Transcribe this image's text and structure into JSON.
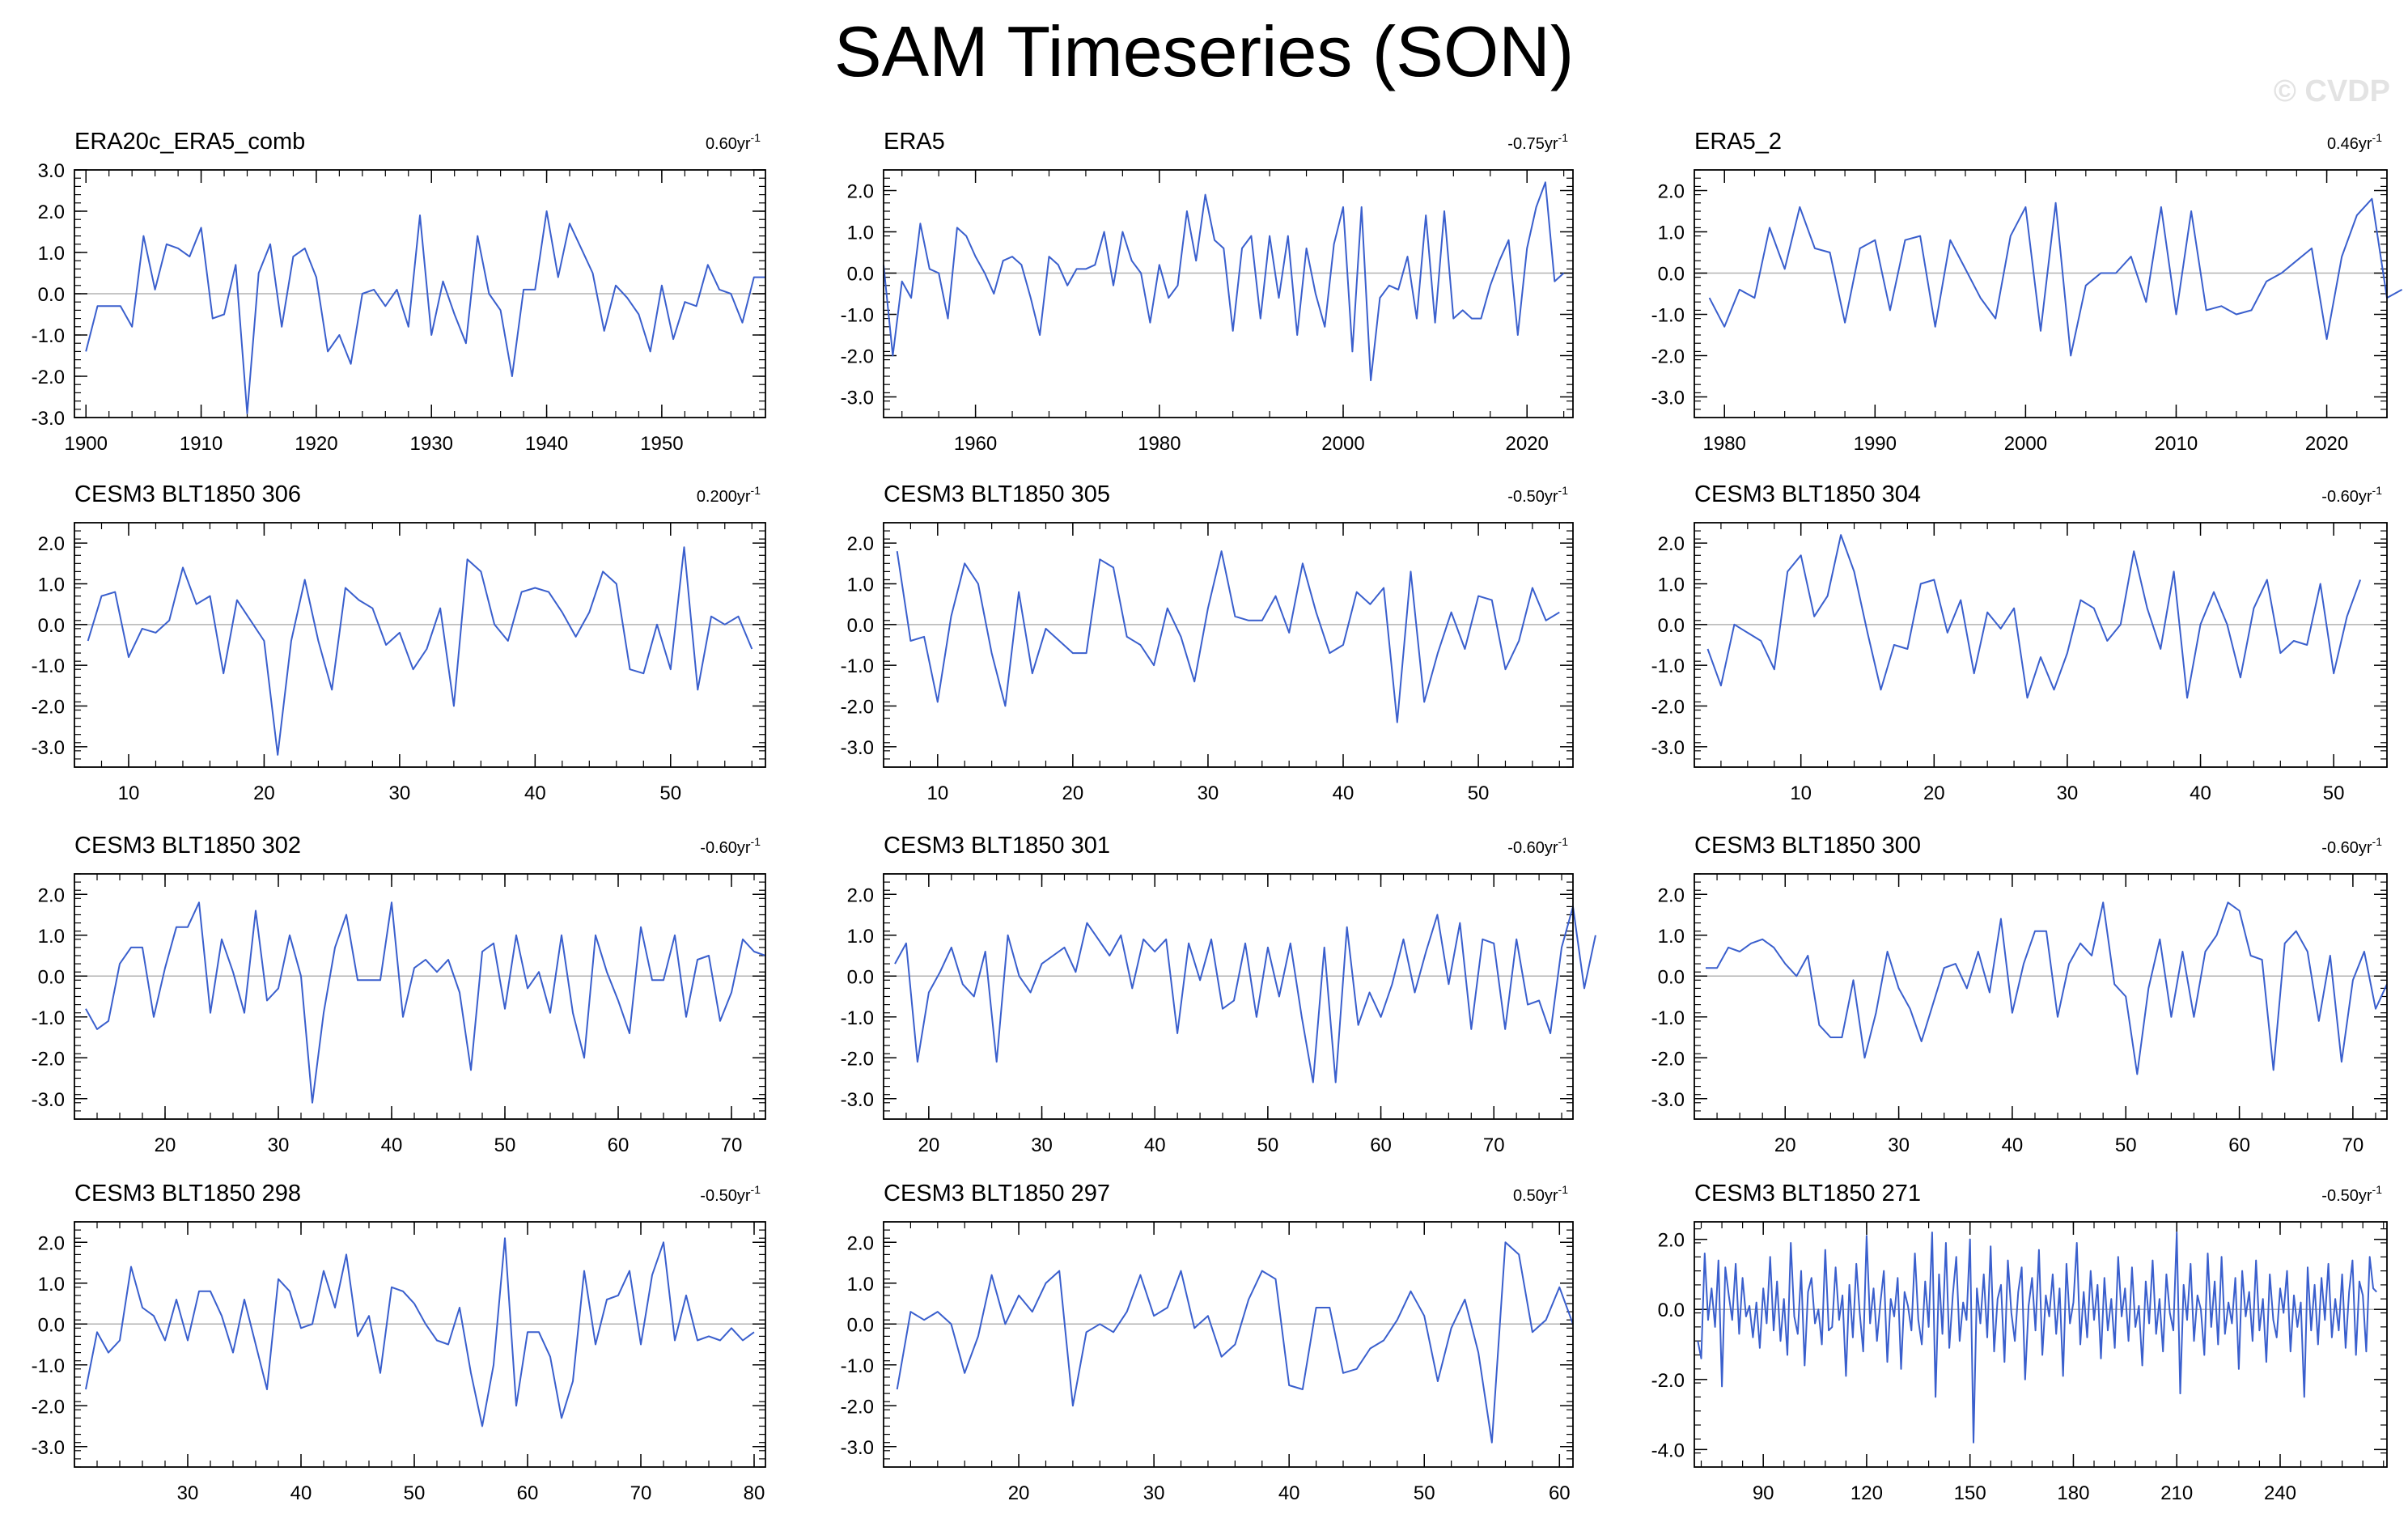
{
  "page": {
    "title": "SAM Timeseries (SON)",
    "watermark": "© CVDP",
    "colors": {
      "series": "#3a5fcd",
      "zero_line": "#b3b3b3",
      "axis": "#000000"
    }
  },
  "chart_data": [
    {
      "type": "line",
      "title": "ERA20c_ERA5_comb",
      "trend": {
        "value": "0.60",
        "unit": "yr",
        "exponent": "-1"
      },
      "xlim": [
        1899,
        1959
      ],
      "ylim": [
        -3,
        3
      ],
      "xticks": [
        1900,
        1910,
        1920,
        1930,
        1940,
        1950
      ],
      "yticks": [
        -3,
        -2,
        -1,
        0,
        1,
        2,
        3
      ],
      "ytick_labels": [
        "-3.0",
        "-2.0",
        "-1.0",
        "0.0",
        "1.0",
        "2.0",
        "3.0"
      ],
      "x_start": 1900,
      "x_step": 1,
      "values": [
        -1.4,
        -0.3,
        -0.3,
        -0.3,
        -0.8,
        1.4,
        0.1,
        1.2,
        1.1,
        0.9,
        1.6,
        -0.6,
        -0.5,
        0.7,
        -2.9,
        0.5,
        1.2,
        -0.8,
        0.9,
        1.1,
        0.4,
        -1.4,
        -1.0,
        -1.7,
        0.0,
        0.1,
        -0.3,
        0.1,
        -0.8,
        1.9,
        -1.0,
        0.3,
        -0.5,
        -1.2,
        1.4,
        0.0,
        -0.4,
        -2.0,
        0.1,
        0.1,
        2.0,
        0.4,
        1.7,
        1.1,
        0.5,
        -0.9,
        0.2,
        -0.1,
        -0.5,
        -1.4,
        0.2,
        -1.1,
        -0.2,
        -0.3,
        0.7,
        0.1,
        0.0,
        -0.7,
        0.4,
        0.4
      ]
    },
    {
      "type": "line",
      "title": "ERA5",
      "trend": {
        "value": "-0.75",
        "unit": "yr",
        "exponent": "-1"
      },
      "xlim": [
        1950,
        2025
      ],
      "ylim": [
        -3.5,
        2.5
      ],
      "xticks": [
        1960,
        1980,
        2000,
        2020
      ],
      "yticks": [
        -3,
        -2,
        -1,
        0,
        1,
        2
      ],
      "ytick_labels": [
        "-3.0",
        "-2.0",
        "-1.0",
        "0.0",
        "1.0",
        "2.0"
      ],
      "x_start": 1950,
      "x_step": 1,
      "values": [
        0.2,
        -2.0,
        -0.2,
        -0.6,
        1.2,
        0.1,
        0.0,
        -1.1,
        1.1,
        0.9,
        0.4,
        0.0,
        -0.5,
        0.3,
        0.4,
        0.2,
        -0.6,
        -1.5,
        0.4,
        0.2,
        -0.3,
        0.1,
        0.1,
        0.2,
        1.0,
        -0.3,
        1.0,
        0.3,
        0.0,
        -1.2,
        0.2,
        -0.6,
        -0.3,
        1.5,
        0.3,
        1.9,
        0.8,
        0.6,
        -1.4,
        0.6,
        0.9,
        -1.1,
        0.9,
        -0.6,
        0.9,
        -1.5,
        0.6,
        -0.5,
        -1.3,
        0.7,
        1.6,
        -1.9,
        1.6,
        -2.6,
        -0.6,
        -0.3,
        -0.4,
        0.4,
        -1.1,
        1.4,
        -1.2,
        1.5,
        -1.1,
        -0.9,
        -1.1,
        -1.1,
        -0.3,
        0.3,
        0.8,
        -1.5,
        0.6,
        1.6,
        2.2,
        -0.2,
        0.0
      ]
    },
    {
      "type": "line",
      "title": "ERA5_2",
      "trend": {
        "value": "0.46",
        "unit": "yr",
        "exponent": "-1"
      },
      "xlim": [
        1978,
        2024
      ],
      "ylim": [
        -3.5,
        2.5
      ],
      "xticks": [
        1980,
        1990,
        2000,
        2010,
        2020
      ],
      "yticks": [
        -3,
        -2,
        -1,
        0,
        1,
        2
      ],
      "ytick_labels": [
        "-3.0",
        "-2.0",
        "-1.0",
        "0.0",
        "1.0",
        "2.0"
      ],
      "x_start": 1979,
      "x_step": 1,
      "values": [
        -0.6,
        -1.3,
        -0.4,
        -0.6,
        1.1,
        0.1,
        1.6,
        0.6,
        0.5,
        -1.2,
        0.6,
        0.8,
        -0.9,
        0.8,
        0.9,
        -1.3,
        0.8,
        0.1,
        -0.6,
        -1.1,
        0.9,
        1.6,
        -1.4,
        1.7,
        -2.0,
        -0.3,
        0.0,
        0.0,
        0.4,
        -0.7,
        1.6,
        -1.0,
        1.5,
        -0.9,
        -0.8,
        -1.0,
        -0.9,
        -0.2,
        0.0,
        0.3,
        0.6,
        -1.6,
        0.4,
        1.4,
        1.8,
        -0.6,
        -0.4
      ]
    },
    {
      "type": "line",
      "title": "CESM3 BLT1850 306",
      "trend": {
        "value": "0.200",
        "unit": "yr",
        "exponent": "-1"
      },
      "xlim": [
        6,
        57
      ],
      "ylim": [
        -3.5,
        2.5
      ],
      "xticks": [
        10,
        20,
        30,
        40,
        50
      ],
      "yticks": [
        -3,
        -2,
        -1,
        0,
        1,
        2
      ],
      "ytick_labels": [
        "-3.0",
        "-2.0",
        "-1.0",
        "0.0",
        "1.0",
        "2.0"
      ],
      "x_start": 7,
      "x_step": 1,
      "values": [
        -0.4,
        0.7,
        0.8,
        -0.8,
        -0.1,
        -0.2,
        0.1,
        1.4,
        0.5,
        0.7,
        -1.2,
        0.6,
        0.1,
        -0.4,
        -3.2,
        -0.4,
        1.1,
        -0.4,
        -1.6,
        0.9,
        0.6,
        0.4,
        -0.5,
        -0.2,
        -1.1,
        -0.6,
        0.4,
        -2.0,
        1.6,
        1.3,
        0.0,
        -0.4,
        0.8,
        0.9,
        0.8,
        0.3,
        -0.3,
        0.3,
        1.3,
        1.0,
        -1.1,
        -1.2,
        0.0,
        -1.1,
        1.9,
        -1.6,
        0.2,
        0.0,
        0.2,
        -0.6
      ]
    },
    {
      "type": "line",
      "title": "CESM3 BLT1850 305",
      "trend": {
        "value": "-0.50",
        "unit": "yr",
        "exponent": "-1"
      },
      "xlim": [
        6,
        57
      ],
      "ylim": [
        -3.5,
        2.5
      ],
      "xticks": [
        10,
        20,
        30,
        40,
        50
      ],
      "yticks": [
        -3,
        -2,
        -1,
        0,
        1,
        2
      ],
      "ytick_labels": [
        "-3.0",
        "-2.0",
        "-1.0",
        "0.0",
        "1.0",
        "2.0"
      ],
      "x_start": 7,
      "x_step": 1,
      "values": [
        1.8,
        -0.4,
        -0.3,
        -1.9,
        0.2,
        1.5,
        1.0,
        -0.7,
        -2.0,
        0.8,
        -1.2,
        -0.1,
        -0.4,
        -0.7,
        -0.7,
        1.6,
        1.4,
        -0.3,
        -0.5,
        -1.0,
        0.4,
        -0.3,
        -1.4,
        0.4,
        1.8,
        0.2,
        0.1,
        0.1,
        0.7,
        -0.2,
        1.5,
        0.3,
        -0.7,
        -0.5,
        0.8,
        0.5,
        0.9,
        -2.4,
        1.3,
        -1.9,
        -0.7,
        0.3,
        -0.6,
        0.7,
        0.6,
        -1.1,
        -0.4,
        0.9,
        0.1,
        0.3
      ]
    },
    {
      "type": "line",
      "title": "CESM3 BLT1850 304",
      "trend": {
        "value": "-0.60",
        "unit": "yr",
        "exponent": "-1"
      },
      "xlim": [
        2,
        54
      ],
      "ylim": [
        -3.5,
        2.5
      ],
      "xticks": [
        10,
        20,
        30,
        40,
        50
      ],
      "yticks": [
        -3,
        -2,
        -1,
        0,
        1,
        2
      ],
      "ytick_labels": [
        "-3.0",
        "-2.0",
        "-1.0",
        "0.0",
        "1.0",
        "2.0"
      ],
      "x_start": 3,
      "x_step": 1,
      "values": [
        -0.6,
        -1.5,
        0.0,
        -0.2,
        -0.4,
        -1.1,
        1.3,
        1.7,
        0.2,
        0.7,
        2.2,
        1.3,
        -0.2,
        -1.6,
        -0.5,
        -0.6,
        1.0,
        1.1,
        -0.2,
        0.6,
        -1.2,
        0.3,
        -0.1,
        0.4,
        -1.8,
        -0.8,
        -1.6,
        -0.7,
        0.6,
        0.4,
        -0.4,
        0.0,
        1.8,
        0.4,
        -0.6,
        1.3,
        -1.8,
        0.0,
        0.8,
        0.0,
        -1.3,
        0.4,
        1.1,
        -0.7,
        -0.4,
        -0.5,
        1.0,
        -1.2,
        0.2,
        1.1
      ]
    },
    {
      "type": "line",
      "title": "CESM3 BLT1850 302",
      "trend": {
        "value": "-0.60",
        "unit": "yr",
        "exponent": "-1"
      },
      "xlim": [
        12,
        73
      ],
      "ylim": [
        -3.5,
        2.5
      ],
      "xticks": [
        20,
        30,
        40,
        50,
        60,
        70
      ],
      "yticks": [
        -3,
        -2,
        -1,
        0,
        1,
        2
      ],
      "ytick_labels": [
        "-3.0",
        "-2.0",
        "-1.0",
        "0.0",
        "1.0",
        "2.0"
      ],
      "x_start": 13,
      "x_step": 1,
      "values": [
        -0.8,
        -1.3,
        -1.1,
        0.3,
        0.7,
        0.7,
        -1.0,
        0.2,
        1.2,
        1.2,
        1.8,
        -0.9,
        0.9,
        0.1,
        -0.9,
        1.6,
        -0.6,
        -0.3,
        1.0,
        0.0,
        -3.1,
        -0.9,
        0.7,
        1.5,
        -0.1,
        -0.1,
        -0.1,
        1.8,
        -1.0,
        0.2,
        0.4,
        0.1,
        0.4,
        -0.4,
        -2.3,
        0.6,
        0.8,
        -0.8,
        1.0,
        -0.3,
        0.1,
        -0.9,
        1.0,
        -0.9,
        -2.0,
        1.0,
        0.1,
        -0.6,
        -1.4,
        1.2,
        -0.1,
        -0.1,
        1.0,
        -1.0,
        0.4,
        0.5,
        -1.1,
        -0.4,
        0.9,
        0.6,
        0.5
      ]
    },
    {
      "type": "line",
      "title": "CESM3 BLT1850 301",
      "trend": {
        "value": "-0.60",
        "unit": "yr",
        "exponent": "-1"
      },
      "xlim": [
        16,
        77
      ],
      "ylim": [
        -3.5,
        2.5
      ],
      "xticks": [
        20,
        30,
        40,
        50,
        60,
        70
      ],
      "yticks": [
        -3,
        -2,
        -1,
        0,
        1,
        2
      ],
      "ytick_labels": [
        "-3.0",
        "-2.0",
        "-1.0",
        "0.0",
        "1.0",
        "2.0"
      ],
      "x_start": 17,
      "x_step": 1,
      "values": [
        0.3,
        0.8,
        -2.1,
        -0.4,
        0.1,
        0.7,
        -0.2,
        -0.5,
        0.6,
        -2.1,
        1.0,
        0.0,
        -0.4,
        0.3,
        0.5,
        0.7,
        0.1,
        1.3,
        0.9,
        0.5,
        1.0,
        -0.3,
        0.9,
        0.6,
        0.9,
        -1.4,
        0.8,
        -0.1,
        0.9,
        -0.8,
        -0.6,
        0.8,
        -1.0,
        0.7,
        -0.5,
        0.8,
        -1.0,
        -2.6,
        0.7,
        -2.6,
        1.2,
        -1.2,
        -0.4,
        -1.0,
        -0.2,
        0.9,
        -0.4,
        0.6,
        1.5,
        -0.2,
        1.3,
        -1.3,
        0.9,
        0.8,
        -1.3,
        0.9,
        -0.7,
        -0.6,
        -1.4,
        0.7,
        1.7,
        -0.3,
        1.0
      ]
    },
    {
      "type": "line",
      "title": "CESM3 BLT1850 300",
      "trend": {
        "value": "-0.60",
        "unit": "yr",
        "exponent": "-1"
      },
      "xlim": [
        12,
        73
      ],
      "ylim": [
        -3.5,
        2.5
      ],
      "xticks": [
        20,
        30,
        40,
        50,
        60,
        70
      ],
      "yticks": [
        -3,
        -2,
        -1,
        0,
        1,
        2
      ],
      "ytick_labels": [
        "-3.0",
        "-2.0",
        "-1.0",
        "0.0",
        "1.0",
        "2.0"
      ],
      "x_start": 13,
      "x_step": 1,
      "values": [
        0.2,
        0.2,
        0.7,
        0.6,
        0.8,
        0.9,
        0.7,
        0.3,
        0.0,
        0.5,
        -1.2,
        -1.5,
        -1.5,
        -0.1,
        -2.0,
        -0.9,
        0.6,
        -0.3,
        -0.8,
        -1.6,
        -0.7,
        0.2,
        0.3,
        -0.3,
        0.6,
        -0.4,
        1.4,
        -0.9,
        0.3,
        1.1,
        1.1,
        -1.0,
        0.3,
        0.8,
        0.5,
        1.8,
        -0.2,
        -0.5,
        -2.4,
        -0.3,
        0.9,
        -1.0,
        0.6,
        -1.0,
        0.6,
        1.0,
        1.8,
        1.6,
        0.5,
        0.4,
        -2.3,
        0.8,
        1.1,
        0.6,
        -1.1,
        0.5,
        -2.1,
        -0.1,
        0.6,
        -0.8,
        -0.2
      ]
    },
    {
      "type": "line",
      "title": "CESM3 BLT1850 298",
      "trend": {
        "value": "-0.50",
        "unit": "yr",
        "exponent": "-1"
      },
      "xlim": [
        20,
        81
      ],
      "ylim": [
        -3.5,
        2.5
      ],
      "xticks": [
        30,
        40,
        50,
        60,
        70,
        80
      ],
      "yticks": [
        -3,
        -2,
        -1,
        0,
        1,
        2
      ],
      "ytick_labels": [
        "-3.0",
        "-2.0",
        "-1.0",
        "0.0",
        "1.0",
        "2.0"
      ],
      "x_start": 21,
      "x_step": 1,
      "values": [
        -1.6,
        -0.2,
        -0.7,
        -0.4,
        1.4,
        0.4,
        0.2,
        -0.4,
        0.6,
        -0.4,
        0.8,
        0.8,
        0.2,
        -0.7,
        0.6,
        -0.5,
        -1.6,
        1.1,
        0.8,
        -0.1,
        0.0,
        1.3,
        0.4,
        1.7,
        -0.3,
        0.2,
        -1.2,
        0.9,
        0.8,
        0.5,
        0.0,
        -0.4,
        -0.5,
        0.4,
        -1.2,
        -2.5,
        -1.0,
        2.1,
        -2.0,
        -0.2,
        -0.2,
        -0.8,
        -2.3,
        -1.4,
        1.3,
        -0.5,
        0.6,
        0.7,
        1.3,
        -0.5,
        1.2,
        2.0,
        -0.4,
        0.7,
        -0.4,
        -0.3,
        -0.4,
        -0.1,
        -0.4,
        -0.2
      ]
    },
    {
      "type": "line",
      "title": "CESM3 BLT1850 297",
      "trend": {
        "value": "0.50",
        "unit": "yr",
        "exponent": "-1"
      },
      "xlim": [
        10,
        61
      ],
      "ylim": [
        -3.5,
        2.5
      ],
      "xticks": [
        20,
        30,
        40,
        50,
        60
      ],
      "yticks": [
        -3,
        -2,
        -1,
        0,
        1,
        2
      ],
      "ytick_labels": [
        "-3.0",
        "-2.0",
        "-1.0",
        "0.0",
        "1.0",
        "2.0"
      ],
      "x_start": 11,
      "x_step": 1,
      "values": [
        -1.6,
        0.3,
        0.1,
        0.3,
        0.0,
        -1.2,
        -0.3,
        1.2,
        0.0,
        0.7,
        0.3,
        1.0,
        1.3,
        -2.0,
        -0.2,
        0.0,
        -0.2,
        0.3,
        1.2,
        0.2,
        0.4,
        1.3,
        -0.1,
        0.2,
        -0.8,
        -0.5,
        0.6,
        1.3,
        1.1,
        -1.5,
        -1.6,
        0.4,
        0.4,
        -1.2,
        -1.1,
        -0.6,
        -0.4,
        0.1,
        0.8,
        0.2,
        -1.4,
        -0.1,
        0.6,
        -0.7,
        -2.9,
        2.0,
        1.7,
        -0.2,
        0.1,
        0.9,
        0.0
      ]
    },
    {
      "type": "line",
      "title": "CESM3 BLT1850 271",
      "trend": {
        "value": "-0.50",
        "unit": "yr",
        "exponent": "-1"
      },
      "xlim": [
        70,
        271
      ],
      "ylim": [
        -4.5,
        2.5
      ],
      "xticks": [
        90,
        120,
        150,
        180,
        210,
        240
      ],
      "yticks": [
        -4,
        -2,
        0,
        2
      ],
      "ytick_labels": [
        "-4.0",
        "-2.0",
        "0.0",
        "2.0"
      ],
      "x_start": 71,
      "x_step": 1,
      "values": [
        -0.9,
        -1.4,
        1.6,
        -0.3,
        0.6,
        -0.5,
        1.4,
        -2.2,
        1.2,
        0.4,
        -0.3,
        1.3,
        -0.7,
        0.9,
        -0.2,
        0.1,
        -0.8,
        0.2,
        -1.1,
        0.6,
        -0.4,
        1.5,
        -0.6,
        0.8,
        -0.9,
        0.3,
        -1.3,
        1.9,
        -0.2,
        -0.7,
        1.1,
        -1.6,
        0.5,
        0.9,
        -0.4,
        0.0,
        -1.0,
        1.7,
        -0.6,
        -0.5,
        1.2,
        -0.3,
        0.4,
        -1.9,
        0.7,
        -0.8,
        1.3,
        -0.1,
        -1.2,
        2.1,
        -0.4,
        0.6,
        -0.9,
        0.2,
        1.1,
        -1.5,
        0.3,
        -0.2,
        0.9,
        -1.7,
        0.5,
        0.1,
        -0.6,
        1.6,
        -0.3,
        -1.0,
        0.8,
        -0.5,
        2.2,
        -2.5,
        1.0,
        -0.7,
        1.9,
        -1.1,
        0.4,
        1.5,
        -0.9,
        0.2,
        -0.3,
        2.0,
        -3.8,
        0.6,
        -0.4,
        1.0,
        -0.8,
        1.8,
        -1.2,
        0.3,
        0.7,
        -1.5,
        1.4,
        -0.1,
        -0.9,
        0.5,
        1.2,
        -2.0,
        0.1,
        0.9,
        -0.6,
        1.7,
        -1.3,
        0.4,
        -0.2,
        1.0,
        -0.7,
        0.6,
        -1.9,
        1.3,
        -0.4,
        0.2,
        1.9,
        -1.0,
        0.5,
        -0.8,
        1.1,
        -0.3,
        0.7,
        -1.4,
        0.9,
        -0.6,
        0.3,
        -1.1,
        1.5,
        -0.2,
        0.6,
        -0.9,
        1.2,
        -0.5,
        0.1,
        -1.6,
        0.8,
        -0.4,
        1.4,
        -0.7,
        0.3,
        -1.2,
        1.0,
        -0.1,
        -0.6,
        2.2,
        -2.4,
        0.7,
        -0.3,
        1.3,
        -0.9,
        0.4,
        0.0,
        -1.3,
        1.6,
        -0.5,
        0.8,
        -1.0,
        1.5,
        -0.7,
        0.2,
        -0.4,
        0.9,
        -1.7,
        1.1,
        -0.2,
        0.5,
        -0.9,
        1.4,
        -0.6,
        0.3,
        -1.5,
        1.0,
        -0.3,
        -0.8,
        0.6,
        -0.1,
        1.1,
        -1.2,
        0.4,
        -0.5,
        0.2,
        -2.5,
        1.2,
        -0.6,
        0.7,
        -1.0,
        0.9,
        -0.3,
        1.3,
        -0.8,
        0.3,
        -0.6,
        1.0,
        -1.1,
        0.5,
        1.4,
        -1.3,
        0.8,
        0.4,
        -1.2,
        1.5,
        0.6,
        0.5
      ]
    }
  ]
}
